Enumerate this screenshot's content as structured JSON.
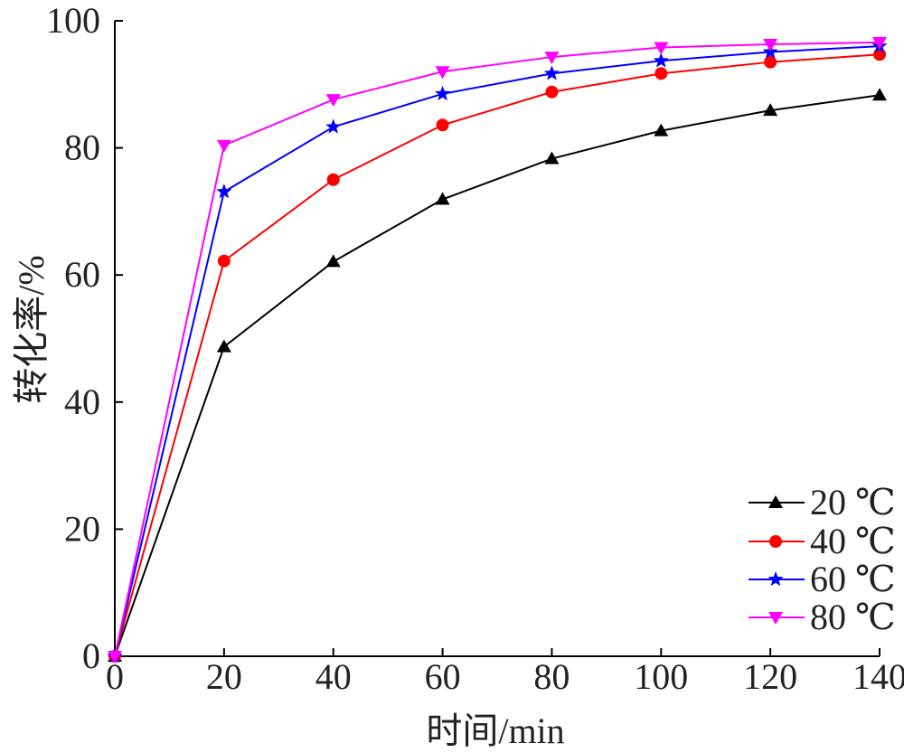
{
  "chart_data": {
    "type": "line",
    "title": "",
    "xlabel": "时间/min",
    "ylabel": "转化率/%",
    "xlim": [
      0,
      140
    ],
    "ylim": [
      0,
      100
    ],
    "x_ticks": [
      0,
      20,
      40,
      60,
      80,
      100,
      120,
      140
    ],
    "y_ticks": [
      0,
      20,
      40,
      60,
      80,
      100
    ],
    "grid": false,
    "legend_position": "bottom-right",
    "x": [
      0,
      20,
      40,
      60,
      80,
      100,
      120,
      140
    ],
    "series": [
      {
        "name": "20 ℃",
        "color": "#000000",
        "marker": "triangle-up",
        "values": [
          0,
          48.7,
          62.1,
          71.9,
          78.3,
          82.7,
          85.9,
          88.3
        ]
      },
      {
        "name": "40 ℃",
        "color": "#ff0000",
        "marker": "circle",
        "values": [
          0,
          62.2,
          75.0,
          83.6,
          88.8,
          91.7,
          93.5,
          94.7
        ]
      },
      {
        "name": "60 ℃",
        "color": "#0000ff",
        "marker": "star",
        "values": [
          0,
          73.1,
          83.3,
          88.5,
          91.7,
          93.7,
          95.1,
          96.0
        ]
      },
      {
        "name": "80 ℃",
        "color": "#ff00ff",
        "marker": "triangle-down",
        "values": [
          0,
          80.4,
          87.6,
          92.0,
          94.3,
          95.8,
          96.3,
          96.6
        ]
      }
    ]
  }
}
